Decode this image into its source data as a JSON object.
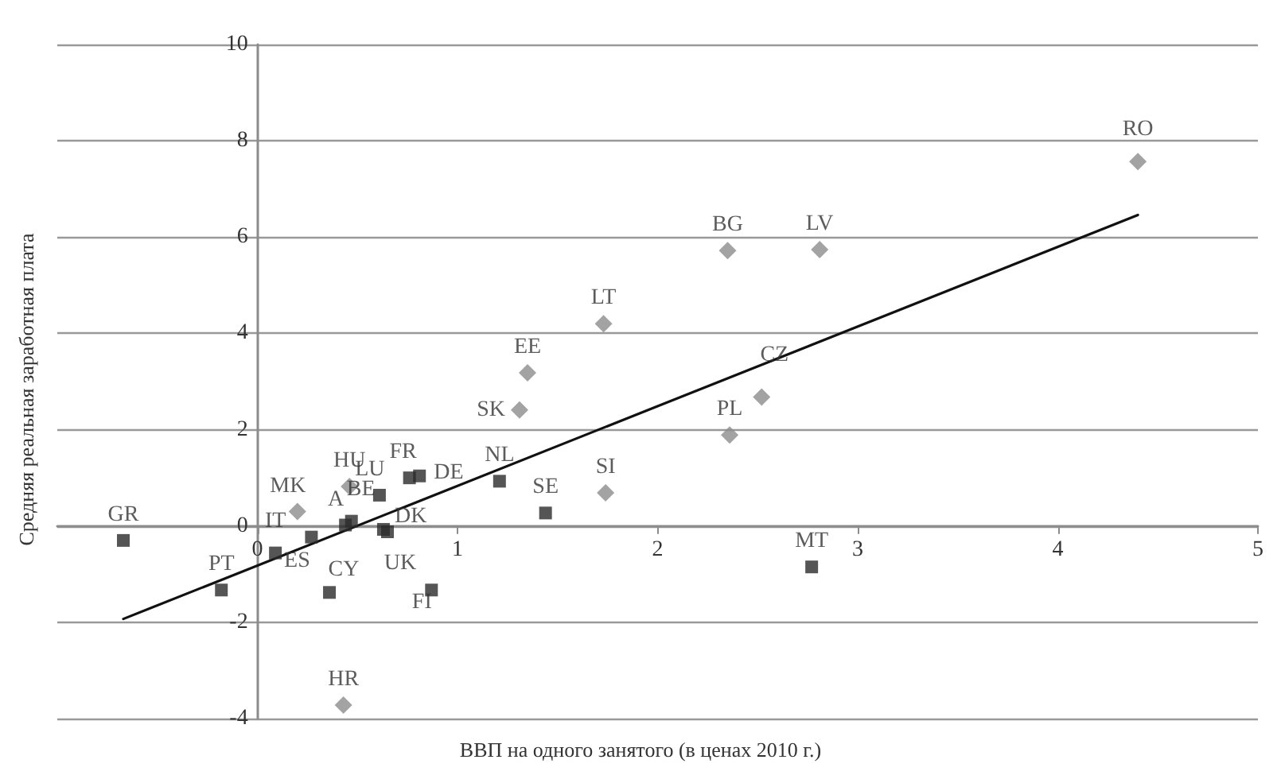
{
  "chart_data": {
    "type": "scatter",
    "xlabel": "ВВП на одного занятого (в ценах 2010 г.)",
    "ylabel": "Средняя реальная заработная плата",
    "xlim": [
      -1,
      5
    ],
    "xticks": [
      0,
      1,
      2,
      3,
      4,
      5
    ],
    "ylim": [
      -4,
      10
    ],
    "yticks": [
      -4,
      -2,
      0,
      2,
      4,
      6,
      8,
      10
    ],
    "grid": "y",
    "series": [
      {
        "marker": "square",
        "color": "#2a2a2a",
        "x": [
          -0.67,
          -0.18,
          0.09,
          0.27,
          0.36,
          0.44,
          0.47,
          0.61,
          0.63,
          0.65,
          0.76,
          0.81,
          0.87,
          1.21,
          1.44,
          2.77
        ],
        "values": [
          -0.3,
          -1.33,
          -0.56,
          -0.23,
          -1.38,
          0.02,
          0.1,
          0.64,
          -0.07,
          -0.12,
          1.0,
          1.04,
          -1.33,
          0.93,
          0.27,
          -0.85
        ]
      },
      {
        "marker": "diamond",
        "color": "#8c8c8c",
        "x": [
          0.2,
          0.46,
          0.43,
          1.31,
          1.35,
          1.73,
          1.74,
          2.35,
          2.36,
          2.52,
          2.81,
          4.4
        ],
        "values": [
          0.3,
          0.82,
          -3.72,
          2.41,
          3.18,
          4.2,
          0.69,
          5.72,
          1.89,
          2.68,
          5.74,
          7.57
        ]
      },
      {
        "type": "line",
        "marker": "none",
        "line_style": "solid",
        "color": "#111111",
        "x": [
          -0.67,
          4.4
        ],
        "values": [
          -1.93,
          6.46
        ]
      }
    ],
    "annotations": [
      {
        "text": "GR",
        "x": -0.67,
        "y": -0.3
      },
      {
        "text": "PT",
        "x": -0.18,
        "y": -1.33
      },
      {
        "text": "IT",
        "x": 0.09,
        "y": -0.56
      },
      {
        "text": "ES",
        "x": 0.27,
        "y": -0.23
      },
      {
        "text": "CY",
        "x": 0.36,
        "y": -1.38
      },
      {
        "text": "A",
        "x": 0.44,
        "y": 0.02
      },
      {
        "text": "BE",
        "x": 0.47,
        "y": 0.1
      },
      {
        "text": "LU",
        "x": 0.61,
        "y": 0.64
      },
      {
        "text": "DK",
        "x": 0.63,
        "y": -0.07
      },
      {
        "text": "UK",
        "x": 0.65,
        "y": -0.12
      },
      {
        "text": "FR",
        "x": 0.76,
        "y": 1.0
      },
      {
        "text": "DE",
        "x": 0.81,
        "y": 1.04
      },
      {
        "text": "FI",
        "x": 0.87,
        "y": -1.33
      },
      {
        "text": "NL",
        "x": 1.21,
        "y": 0.93
      },
      {
        "text": "SE",
        "x": 1.44,
        "y": 0.27
      },
      {
        "text": "MT",
        "x": 2.77,
        "y": -0.85
      },
      {
        "text": "MK",
        "x": 0.2,
        "y": 0.3
      },
      {
        "text": "HU",
        "x": 0.46,
        "y": 0.82
      },
      {
        "text": "HR",
        "x": 0.43,
        "y": -3.72
      },
      {
        "text": "SK",
        "x": 1.31,
        "y": 2.41
      },
      {
        "text": "EE",
        "x": 1.35,
        "y": 3.18
      },
      {
        "text": "LT",
        "x": 1.73,
        "y": 4.2
      },
      {
        "text": "SI",
        "x": 1.74,
        "y": 0.69
      },
      {
        "text": "BG",
        "x": 2.35,
        "y": 5.72
      },
      {
        "text": "PL",
        "x": 2.36,
        "y": 1.89
      },
      {
        "text": "CZ",
        "x": 2.52,
        "y": 2.68
      },
      {
        "text": "LV",
        "x": 2.81,
        "y": 5.74
      },
      {
        "text": "RO",
        "x": 4.4,
        "y": 7.57
      }
    ]
  }
}
